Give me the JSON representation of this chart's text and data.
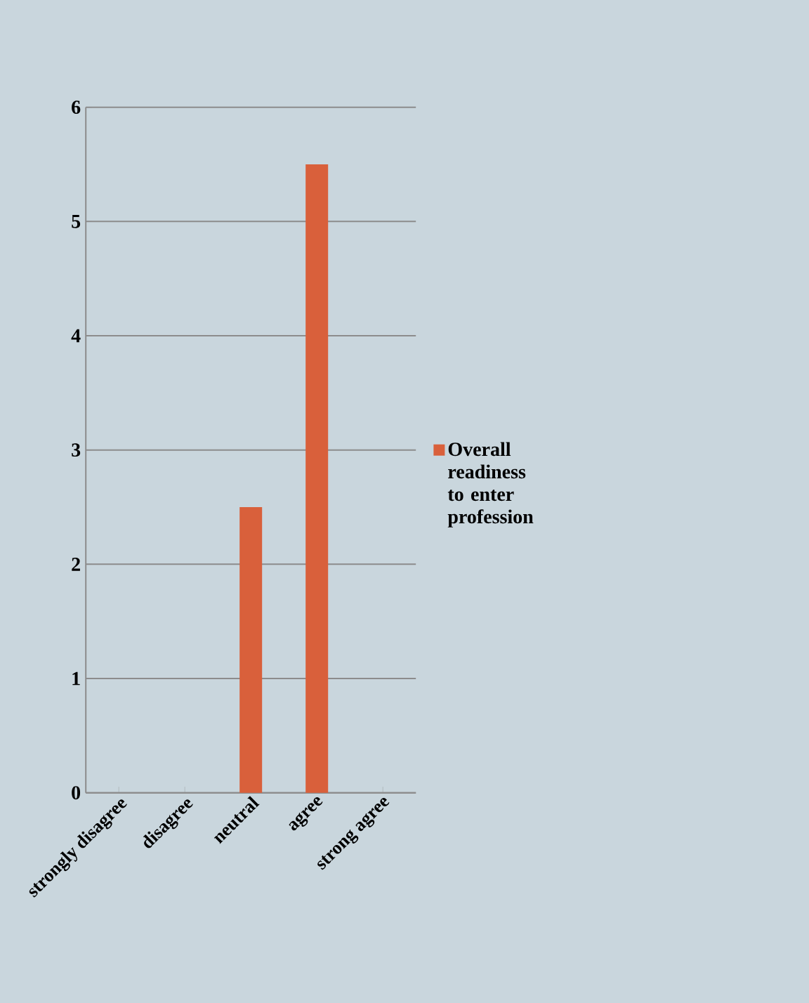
{
  "chart_data": {
    "type": "bar",
    "categories": [
      "strongly disagree",
      "disagree",
      "neutral",
      "agree",
      "strong agree"
    ],
    "series": [
      {
        "name": "Overall readiness to enter profession",
        "color": "#d9603b",
        "values": [
          0,
          0,
          2.5,
          5.5,
          0
        ]
      }
    ],
    "ylim": [
      0,
      6
    ],
    "yticks": [
      0,
      1,
      2,
      3,
      4,
      5,
      6
    ],
    "grid": "y",
    "legend": "right"
  }
}
